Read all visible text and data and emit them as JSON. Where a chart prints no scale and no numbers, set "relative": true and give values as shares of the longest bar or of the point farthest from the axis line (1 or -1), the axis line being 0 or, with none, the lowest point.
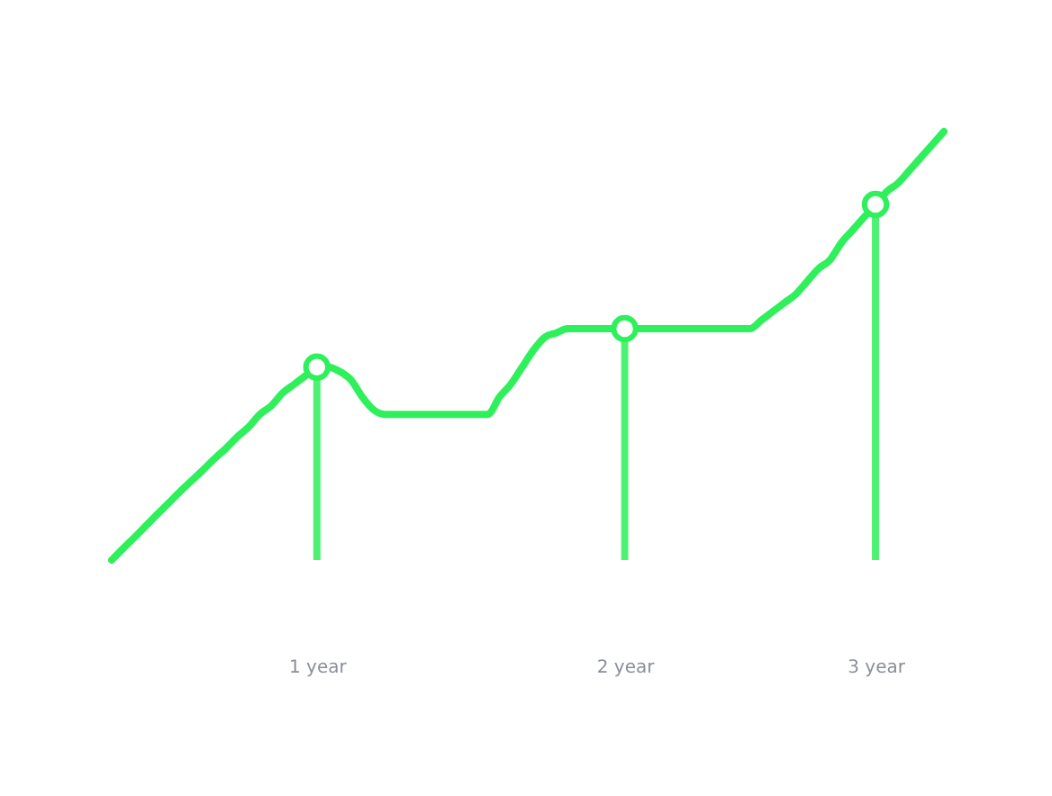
{
  "chart_data": {
    "type": "line",
    "relative": true,
    "categories": [
      null,
      null,
      null,
      null,
      null,
      null,
      null,
      null,
      null,
      null,
      null,
      null,
      null,
      null,
      null,
      null,
      null,
      null,
      "1 year",
      null,
      null,
      null,
      null,
      null,
      null,
      null,
      null,
      null,
      null,
      null,
      null,
      null,
      null,
      null,
      null,
      null,
      null,
      null,
      null,
      null,
      null,
      null,
      null,
      null,
      null,
      "2 year",
      null,
      null,
      null,
      null,
      null,
      null,
      null,
      null,
      null,
      null,
      null,
      null,
      null,
      null,
      null,
      null,
      null,
      null,
      null,
      null,
      null,
      "3 year",
      null,
      null,
      null,
      null,
      null,
      null
    ],
    "series": [
      {
        "color": "#2ef05a",
        "values": [
          0,
          0.027,
          0.053,
          0.08,
          0.107,
          0.133,
          0.16,
          0.185,
          0.21,
          0.236,
          0.26,
          0.287,
          0.31,
          0.34,
          0.36,
          0.39,
          0.41,
          0.43,
          0.45,
          0.45,
          0.44,
          0.42,
          0.38,
          0.35,
          0.34,
          0.34,
          0.34,
          0.34,
          0.34,
          0.34,
          0.34,
          0.34,
          0.34,
          0.34,
          0.38,
          0.41,
          0.45,
          0.49,
          0.52,
          0.53,
          0.54,
          0.54,
          0.54,
          0.54,
          0.54,
          0.54,
          0.54,
          0.54,
          0.54,
          0.54,
          0.54,
          0.54,
          0.54,
          0.54,
          0.54,
          0.54,
          0.54,
          0.56,
          0.58,
          0.6,
          0.62,
          0.65,
          0.68,
          0.7,
          0.74,
          0.77,
          0.8,
          0.83,
          0.86,
          0.88,
          0.91,
          0.94,
          0.97,
          1
        ]
      },
      {
        "type": "scatter",
        "color": "#2ef05a",
        "marker": "circle",
        "values": [
          null,
          null,
          null,
          null,
          null,
          null,
          null,
          null,
          null,
          null,
          null,
          null,
          null,
          null,
          null,
          null,
          null,
          null,
          0.45,
          null,
          null,
          null,
          null,
          null,
          null,
          null,
          null,
          null,
          null,
          null,
          null,
          null,
          null,
          null,
          null,
          null,
          null,
          null,
          null,
          null,
          null,
          null,
          null,
          null,
          null,
          0.54,
          null,
          null,
          null,
          null,
          null,
          null,
          null,
          null,
          null,
          null,
          null,
          null,
          null,
          null,
          null,
          null,
          null,
          null,
          null,
          null,
          null,
          0.83,
          null,
          null,
          null,
          null,
          null,
          null
        ]
      }
    ]
  }
}
